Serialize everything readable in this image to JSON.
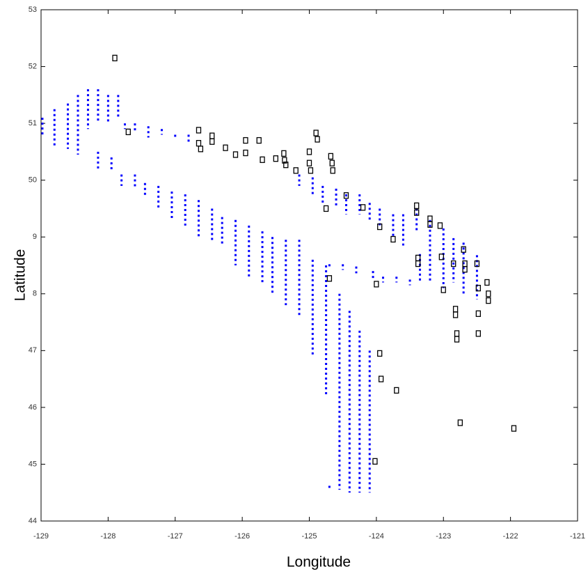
{
  "chart_data": {
    "type": "scatter",
    "x_label": "Longitude",
    "y_label": "Latitude",
    "xlim": [
      -129,
      -121
    ],
    "ylim": [
      44,
      53
    ],
    "xticks": [
      -129,
      -128,
      -127,
      -126,
      -125,
      -124,
      -123,
      -122,
      -121
    ],
    "yticks": [
      44,
      45,
      46,
      {
        "value": 47,
        "label": "47"
      },
      {
        "value": 48,
        "label": "8"
      },
      {
        "value": 49,
        "label": "9"
      },
      50,
      51,
      52,
      53
    ],
    "series": [
      {
        "color": "#0000ff",
        "marker": "dotted-track",
        "x": [
          -128.98,
          -128.98,
          null,
          -128.8,
          -128.8,
          null,
          -128.6,
          -128.6,
          null,
          -128.45,
          -128.45,
          null,
          -128.3,
          -128.3,
          null,
          -128.15,
          -128.15,
          null,
          -128.0,
          -128.0,
          null,
          -127.85,
          -127.85,
          null,
          -127.75,
          -127.75,
          null,
          -127.6,
          -127.6,
          null,
          -127.4,
          -127.4,
          null,
          -127.2,
          -127.2,
          null,
          -127.0,
          -127.0,
          null,
          -126.8,
          -126.8,
          null,
          -128.15,
          -128.15,
          null,
          -127.95,
          -127.95,
          null,
          -127.8,
          -127.8,
          null,
          -127.6,
          -127.6,
          null,
          -127.45,
          -127.45,
          null,
          -127.25,
          -127.25,
          null,
          -127.05,
          -127.05,
          null,
          -126.85,
          -126.85,
          null,
          -126.65,
          -126.65,
          null,
          -126.45,
          -126.45,
          null,
          -126.3,
          -126.3,
          null,
          -126.1,
          -126.1,
          null,
          -125.9,
          -125.9,
          null,
          -125.7,
          -125.7,
          null,
          -125.55,
          -125.55,
          null,
          -125.35,
          -125.35,
          null,
          -125.15,
          -125.15,
          null,
          -124.95,
          -124.95,
          null,
          -124.75,
          -124.75,
          null,
          -124.55,
          -124.55,
          null,
          -124.4,
          -124.4,
          null,
          -124.25,
          -124.25,
          null,
          -124.1,
          -124.1,
          null,
          -124.7,
          -124.7,
          null,
          -125.15,
          -125.15,
          null,
          -124.95,
          -124.95,
          null,
          -124.8,
          -124.8,
          null,
          -124.6,
          -124.6,
          null,
          -124.45,
          -124.45,
          null,
          -124.25,
          -124.25,
          null,
          -124.1,
          -124.1,
          null,
          -123.95,
          -123.95,
          null,
          -123.75,
          -123.75,
          null,
          -123.6,
          -123.6,
          null,
          -123.4,
          -123.4,
          null,
          -124.7,
          -124.7,
          null,
          -124.5,
          -124.5,
          null,
          -124.3,
          -124.3,
          null,
          -124.05,
          -124.05,
          null,
          -123.9,
          -123.9,
          null,
          -123.7,
          -123.7,
          null,
          -123.5,
          -123.5,
          null,
          -123.35,
          -123.35,
          null,
          -123.2,
          -123.2,
          null,
          -123.0,
          -123.0,
          null,
          -122.85,
          -122.85,
          null,
          -122.7,
          -122.7,
          null,
          -122.5,
          -122.5
        ],
        "values": [
          51.1,
          50.8,
          null,
          51.25,
          50.6,
          null,
          51.35,
          50.55,
          null,
          51.5,
          50.45,
          null,
          51.6,
          50.9,
          null,
          51.6,
          51.0,
          null,
          51.5,
          51.0,
          null,
          51.5,
          51.1,
          null,
          51.0,
          50.9,
          null,
          51.0,
          50.85,
          null,
          50.95,
          50.75,
          null,
          50.9,
          50.8,
          null,
          50.8,
          50.75,
          null,
          50.8,
          50.65,
          null,
          50.5,
          50.2,
          null,
          50.4,
          50.15,
          null,
          50.1,
          49.9,
          null,
          50.1,
          49.85,
          null,
          49.95,
          49.7,
          null,
          49.9,
          49.5,
          null,
          49.8,
          49.3,
          null,
          49.75,
          49.2,
          null,
          49.65,
          49.0,
          null,
          49.5,
          48.9,
          null,
          49.35,
          48.85,
          null,
          49.3,
          48.5,
          null,
          49.2,
          48.3,
          null,
          49.1,
          48.2,
          null,
          49.0,
          48.0,
          null,
          48.95,
          47.8,
          null,
          48.95,
          47.6,
          null,
          48.6,
          46.9,
          null,
          48.5,
          46.2,
          null,
          48.0,
          44.55,
          null,
          47.7,
          44.5,
          null,
          47.35,
          44.5,
          null,
          47.0,
          44.5,
          null,
          44.62,
          44.58,
          null,
          50.1,
          49.9,
          null,
          50.05,
          49.75,
          null,
          49.9,
          49.6,
          null,
          49.85,
          49.55,
          null,
          49.75,
          49.4,
          null,
          49.75,
          49.4,
          null,
          49.6,
          49.3,
          null,
          49.5,
          49.2,
          null,
          49.4,
          49.0,
          null,
          49.4,
          48.85,
          null,
          49.5,
          49.1,
          null,
          48.52,
          48.45,
          null,
          48.52,
          48.42,
          null,
          48.48,
          48.36,
          null,
          48.4,
          48.25,
          null,
          48.3,
          48.2,
          null,
          48.3,
          48.2,
          null,
          48.25,
          48.15,
          null,
          48.7,
          48.2,
          null,
          49.3,
          48.2,
          null,
          49.15,
          48.1,
          null,
          48.98,
          48.2,
          null,
          48.9,
          48.0,
          null,
          48.68,
          47.9
        ]
      },
      {
        "color": "#000000",
        "marker": "square",
        "x": [
          -127.9,
          -127.7,
          -126.65,
          -126.65,
          -126.62,
          -126.45,
          -126.45,
          -126.25,
          -126.1,
          -125.95,
          -125.95,
          -125.75,
          -125.7,
          -125.5,
          -125.38,
          -125.37,
          -125.35,
          -125.2,
          -125.0,
          -125.0,
          -124.98,
          -124.9,
          -124.88,
          -124.68,
          -124.66,
          -124.65,
          -124.45,
          -124.75,
          -124.2,
          -123.95,
          -123.75,
          -123.4,
          -123.4,
          -123.38,
          -123.38,
          -123.2,
          -123.2,
          -123.05,
          -123.03,
          -123.0,
          -122.85,
          -122.82,
          -122.82,
          -122.8,
          -122.8,
          -122.7,
          -122.68,
          -122.68,
          -122.5,
          -122.48,
          -122.48,
          -122.48,
          -122.35,
          -122.33,
          -122.33,
          -124.7,
          -124.0,
          -123.95,
          -123.93,
          -123.7,
          -124.02,
          -122.75,
          -121.95
        ],
        "values": [
          52.15,
          50.85,
          50.88,
          50.65,
          50.55,
          50.78,
          50.68,
          50.57,
          50.45,
          50.7,
          50.48,
          50.7,
          50.36,
          50.38,
          50.47,
          50.35,
          50.27,
          50.17,
          50.5,
          50.3,
          50.17,
          50.83,
          50.72,
          50.42,
          50.3,
          50.17,
          49.73,
          49.5,
          49.52,
          49.18,
          48.96,
          49.55,
          49.43,
          48.63,
          48.53,
          49.32,
          49.22,
          49.2,
          48.65,
          48.07,
          48.53,
          47.73,
          47.63,
          47.3,
          47.2,
          48.78,
          48.53,
          48.43,
          48.53,
          48.1,
          47.65,
          47.3,
          48.2,
          48.0,
          47.88,
          48.27,
          48.17,
          46.95,
          46.5,
          46.3,
          45.05,
          45.73,
          45.63
        ]
      }
    ]
  }
}
